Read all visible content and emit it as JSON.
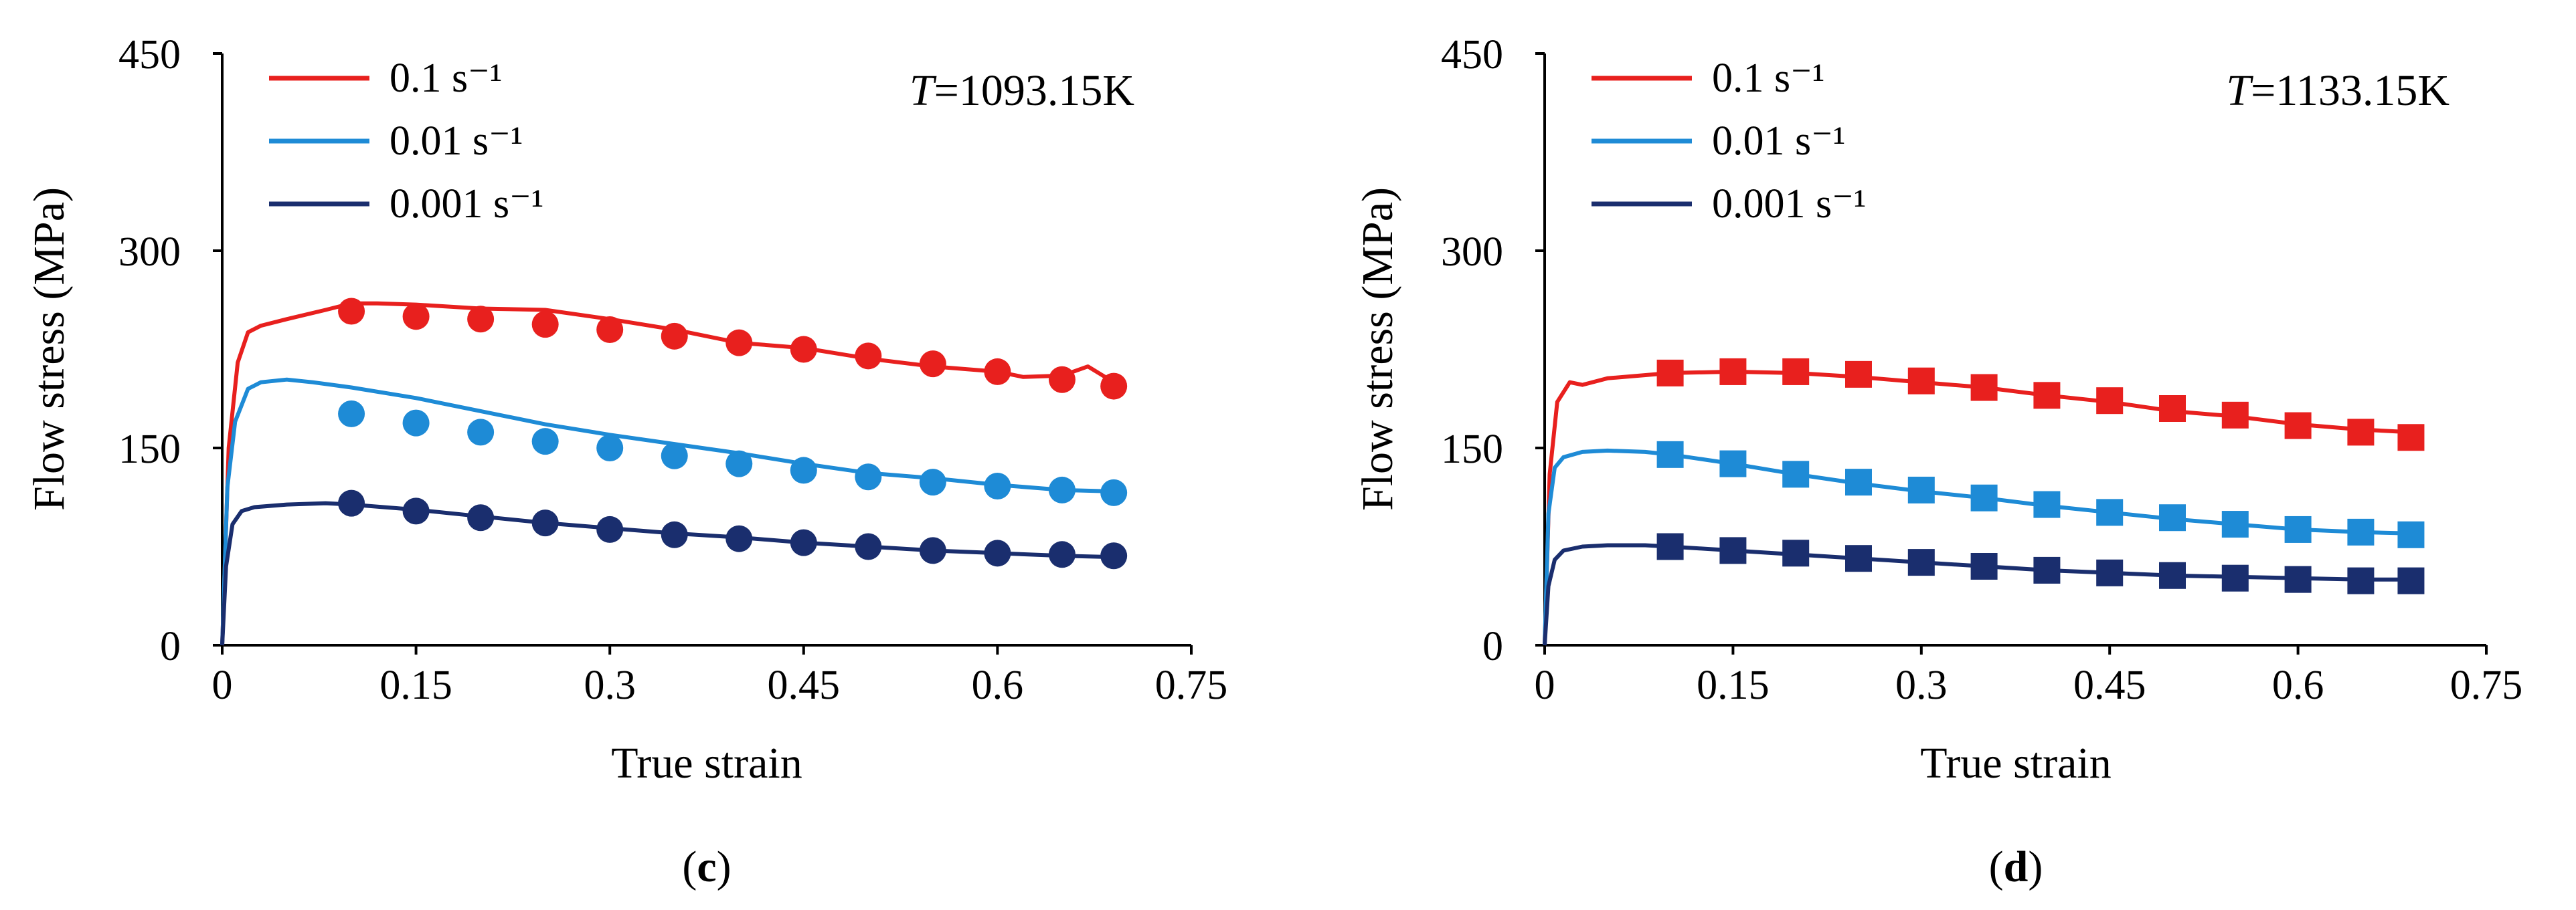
{
  "chart_data": [
    {
      "type": "line",
      "panel_label": "c",
      "annotation": {
        "prefix": "T",
        "suffix": "=1093.15K"
      },
      "xlabel": "True strain",
      "ylabel": "Flow stress (MPa)",
      "xlim": [
        0,
        0.75
      ],
      "ylim": [
        0,
        450
      ],
      "xticks": [
        0,
        0.15,
        0.3,
        0.45,
        0.6,
        0.75
      ],
      "xtick_labels": [
        "0",
        "0.15",
        "0.3",
        "0.45",
        "0.6",
        "0.75"
      ],
      "yticks": [
        0,
        150,
        300,
        450
      ],
      "ytick_labels": [
        "0",
        "150",
        "300",
        "450"
      ],
      "legend_position": "top-left",
      "marker": "circle",
      "series": [
        {
          "name": "0.1 s⁻¹",
          "color": "#e8201e",
          "curve_x": [
            0,
            0.005,
            0.012,
            0.02,
            0.03,
            0.05,
            0.08,
            0.1,
            0.12,
            0.15,
            0.2,
            0.25,
            0.3,
            0.35,
            0.4,
            0.45,
            0.5,
            0.55,
            0.6,
            0.62,
            0.65,
            0.67,
            0.69
          ],
          "curve_y": [
            0,
            150,
            215,
            238,
            243,
            248,
            255,
            260,
            260,
            259,
            256,
            255,
            248,
            240,
            230,
            226,
            218,
            212,
            208,
            204,
            205,
            212,
            200
          ],
          "points_x": [
            0.1,
            0.15,
            0.2,
            0.25,
            0.3,
            0.35,
            0.4,
            0.45,
            0.5,
            0.55,
            0.6,
            0.65,
            0.69
          ],
          "points_y": [
            254,
            250,
            248,
            244,
            240,
            235,
            230,
            225,
            220,
            214,
            208,
            202,
            197
          ]
        },
        {
          "name": "0.01 s⁻¹",
          "color": "#1e8bd6",
          "curve_x": [
            0,
            0.004,
            0.01,
            0.02,
            0.03,
            0.05,
            0.07,
            0.1,
            0.15,
            0.2,
            0.25,
            0.3,
            0.35,
            0.4,
            0.45,
            0.5,
            0.55,
            0.6,
            0.65,
            0.69
          ],
          "curve_y": [
            0,
            120,
            170,
            195,
            200,
            202,
            200,
            196,
            188,
            178,
            168,
            160,
            153,
            146,
            138,
            131,
            127,
            122,
            118,
            117
          ],
          "points_x": [
            0.1,
            0.15,
            0.2,
            0.25,
            0.3,
            0.35,
            0.4,
            0.45,
            0.5,
            0.55,
            0.6,
            0.65,
            0.69
          ],
          "points_y": [
            176,
            169,
            162,
            155,
            150,
            144,
            138,
            133,
            128,
            124,
            121,
            118,
            116
          ]
        },
        {
          "name": "0.001 s⁻¹",
          "color": "#1a2e6e",
          "curve_x": [
            0,
            0.003,
            0.008,
            0.015,
            0.025,
            0.05,
            0.08,
            0.1,
            0.15,
            0.2,
            0.25,
            0.3,
            0.35,
            0.4,
            0.45,
            0.5,
            0.55,
            0.6,
            0.65,
            0.69
          ],
          "curve_y": [
            0,
            60,
            92,
            102,
            105,
            107,
            108,
            107,
            103,
            98,
            93,
            89,
            85,
            82,
            78,
            75,
            72,
            70,
            68,
            67
          ],
          "points_x": [
            0.1,
            0.15,
            0.2,
            0.25,
            0.3,
            0.35,
            0.4,
            0.45,
            0.5,
            0.55,
            0.6,
            0.65,
            0.69
          ],
          "points_y": [
            108,
            102,
            97,
            93,
            88,
            84,
            81,
            78,
            75,
            72,
            70,
            69,
            68
          ]
        }
      ]
    },
    {
      "type": "line",
      "panel_label": "d",
      "annotation": {
        "prefix": "T",
        "suffix": "=1133.15K"
      },
      "xlabel": "True strain",
      "ylabel": "Flow stress (MPa)",
      "xlim": [
        0,
        0.75
      ],
      "ylim": [
        0,
        450
      ],
      "xticks": [
        0,
        0.15,
        0.3,
        0.45,
        0.6,
        0.75
      ],
      "xtick_labels": [
        "0",
        "0.15",
        "0.3",
        "0.45",
        "0.6",
        "0.75"
      ],
      "yticks": [
        0,
        150,
        300,
        450
      ],
      "ytick_labels": [
        "0",
        "150",
        "300",
        "450"
      ],
      "legend_position": "top-left",
      "marker": "square",
      "series": [
        {
          "name": "0.1 s⁻¹",
          "color": "#e8201e",
          "curve_x": [
            0,
            0.004,
            0.01,
            0.02,
            0.03,
            0.05,
            0.1,
            0.15,
            0.2,
            0.25,
            0.3,
            0.35,
            0.4,
            0.45,
            0.5,
            0.55,
            0.6,
            0.65,
            0.69
          ],
          "curve_y": [
            0,
            130,
            185,
            200,
            198,
            203,
            207,
            208,
            207,
            204,
            200,
            196,
            190,
            185,
            178,
            174,
            168,
            164,
            162
          ],
          "points_x": [
            0.1,
            0.15,
            0.2,
            0.25,
            0.3,
            0.35,
            0.4,
            0.45,
            0.5,
            0.55,
            0.6,
            0.65,
            0.69
          ],
          "points_y": [
            207,
            208,
            208,
            206,
            201,
            196,
            190,
            186,
            180,
            175,
            167,
            162,
            158
          ]
        },
        {
          "name": "0.01 s⁻¹",
          "color": "#1e8bd6",
          "curve_x": [
            0,
            0.003,
            0.008,
            0.015,
            0.03,
            0.05,
            0.08,
            0.1,
            0.15,
            0.2,
            0.25,
            0.3,
            0.35,
            0.4,
            0.45,
            0.5,
            0.55,
            0.6,
            0.65,
            0.69
          ],
          "curve_y": [
            0,
            100,
            135,
            143,
            147,
            148,
            147,
            145,
            138,
            130,
            123,
            117,
            112,
            106,
            101,
            96,
            92,
            88,
            86,
            85
          ],
          "points_x": [
            0.1,
            0.15,
            0.2,
            0.25,
            0.3,
            0.35,
            0.4,
            0.45,
            0.5,
            0.55,
            0.6,
            0.65,
            0.69
          ],
          "points_y": [
            145,
            138,
            130,
            124,
            118,
            112,
            107,
            101,
            97,
            92,
            88,
            86,
            84
          ]
        },
        {
          "name": "0.001 s⁻¹",
          "color": "#1a2e6e",
          "curve_x": [
            0,
            0.003,
            0.008,
            0.015,
            0.03,
            0.05,
            0.08,
            0.1,
            0.15,
            0.2,
            0.25,
            0.3,
            0.35,
            0.4,
            0.45,
            0.5,
            0.55,
            0.6,
            0.65,
            0.69
          ],
          "curve_y": [
            0,
            45,
            65,
            72,
            75,
            76,
            76,
            75,
            72,
            69,
            66,
            63,
            60,
            57,
            55,
            53,
            52,
            51,
            50,
            50
          ],
          "points_x": [
            0.1,
            0.15,
            0.2,
            0.25,
            0.3,
            0.35,
            0.4,
            0.45,
            0.5,
            0.55,
            0.6,
            0.65,
            0.69
          ],
          "points_y": [
            75,
            72,
            70,
            66,
            63,
            60,
            57,
            55,
            53,
            51,
            50,
            49,
            49
          ]
        }
      ]
    }
  ]
}
